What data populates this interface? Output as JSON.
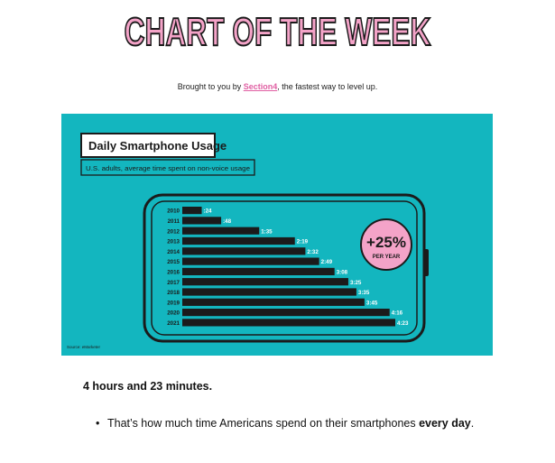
{
  "headline": "CHART OF THE WEEK",
  "byline": {
    "prefix": "Brought to you by ",
    "link": "Section4",
    "suffix": ", the fastest way to level up."
  },
  "colors": {
    "background": "#13b6bf",
    "bar": "#1b1b1b",
    "badge": "#f4a3c8",
    "headline": "#f4a3c8"
  },
  "chart_data": {
    "type": "bar",
    "orientation": "horizontal",
    "title": "Daily Smartphone Usage",
    "subtitle": "U.S. adults, average time spent on non-voice usage",
    "source": "Source: eMarketer",
    "categories": [
      "2010",
      "2011",
      "2012",
      "2013",
      "2014",
      "2015",
      "2016",
      "2017",
      "2018",
      "2019",
      "2020",
      "2021"
    ],
    "labels": [
      ":24",
      ":48",
      "1:35",
      "2:19",
      "2:32",
      "2:49",
      "3:08",
      "3:25",
      "3:35",
      "3:45",
      "4:16",
      "4:23"
    ],
    "values": [
      24,
      48,
      95,
      139,
      152,
      169,
      188,
      205,
      215,
      225,
      256,
      263
    ],
    "value_unit": "minutes",
    "xlim": [
      0,
      263
    ],
    "grid": false,
    "annotation": {
      "value": "+25%",
      "caption": "PER YEAR"
    }
  },
  "body": {
    "lead": "4 hours and 23 minutes.",
    "bullet": {
      "text": "That’s how much time Americans spend on their smartphones ",
      "bold": "every day",
      "end": "."
    }
  }
}
